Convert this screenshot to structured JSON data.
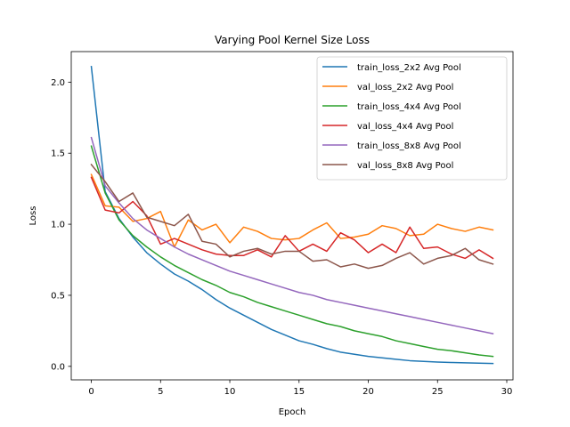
{
  "chart_data": {
    "type": "line",
    "title": "Varying Pool Kernel Size Loss",
    "xlabel": "Epoch",
    "ylabel": "Loss",
    "xlim": [
      -1.45,
      30.45
    ],
    "ylim": [
      -0.095,
      2.215
    ],
    "xticks": [
      0,
      5,
      10,
      15,
      20,
      25,
      30
    ],
    "yticks": [
      0.0,
      0.5,
      1.0,
      1.5,
      2.0
    ],
    "ytick_labels": [
      "0.0",
      "0.5",
      "1.0",
      "1.5",
      "2.0"
    ],
    "grid": false,
    "legend_position": "top-right",
    "x": [
      0,
      1,
      2,
      3,
      4,
      5,
      6,
      7,
      8,
      9,
      10,
      11,
      12,
      13,
      14,
      15,
      16,
      17,
      18,
      19,
      20,
      21,
      22,
      23,
      24,
      25,
      26,
      27,
      28,
      29
    ],
    "series": [
      {
        "name": "train_loss_2x2 Avg Pool",
        "color": "#1f77b4",
        "values": [
          2.11,
          1.23,
          1.04,
          0.91,
          0.8,
          0.72,
          0.65,
          0.6,
          0.54,
          0.47,
          0.41,
          0.36,
          0.31,
          0.26,
          0.22,
          0.18,
          0.155,
          0.125,
          0.1,
          0.085,
          0.07,
          0.06,
          0.05,
          0.04,
          0.035,
          0.03,
          0.027,
          0.025,
          0.022,
          0.02
        ]
      },
      {
        "name": "val_loss_2x2 Avg Pool",
        "color": "#ff7f0e",
        "values": [
          1.35,
          1.13,
          1.12,
          1.02,
          1.04,
          1.09,
          0.84,
          1.03,
          0.96,
          1.0,
          0.87,
          0.98,
          0.95,
          0.9,
          0.89,
          0.9,
          0.96,
          1.01,
          0.9,
          0.91,
          0.93,
          0.99,
          0.97,
          0.92,
          0.93,
          1.0,
          0.97,
          0.95,
          0.98,
          0.96
        ]
      },
      {
        "name": "train_loss_4x4 Avg Pool",
        "color": "#2ca02c",
        "values": [
          1.55,
          1.22,
          1.03,
          0.92,
          0.84,
          0.77,
          0.71,
          0.66,
          0.61,
          0.57,
          0.52,
          0.49,
          0.45,
          0.42,
          0.39,
          0.36,
          0.33,
          0.3,
          0.28,
          0.25,
          0.23,
          0.21,
          0.18,
          0.16,
          0.14,
          0.12,
          0.11,
          0.095,
          0.08,
          0.07
        ]
      },
      {
        "name": "val_loss_4x4 Avg Pool",
        "color": "#d62728",
        "values": [
          1.33,
          1.1,
          1.08,
          1.16,
          1.06,
          0.86,
          0.9,
          0.86,
          0.82,
          0.79,
          0.78,
          0.78,
          0.82,
          0.77,
          0.92,
          0.81,
          0.86,
          0.81,
          0.94,
          0.89,
          0.8,
          0.86,
          0.8,
          0.98,
          0.83,
          0.84,
          0.79,
          0.76,
          0.82,
          0.76
        ]
      },
      {
        "name": "train_loss_8x8 Avg Pool",
        "color": "#9467bd",
        "values": [
          1.61,
          1.27,
          1.15,
          1.04,
          0.96,
          0.9,
          0.84,
          0.79,
          0.75,
          0.71,
          0.67,
          0.64,
          0.61,
          0.58,
          0.55,
          0.52,
          0.5,
          0.47,
          0.45,
          0.43,
          0.41,
          0.39,
          0.37,
          0.35,
          0.33,
          0.31,
          0.29,
          0.27,
          0.25,
          0.23
        ]
      },
      {
        "name": "val_loss_8x8 Avg Pool",
        "color": "#8c564b",
        "values": [
          1.42,
          1.3,
          1.16,
          1.22,
          1.05,
          1.02,
          0.99,
          1.07,
          0.88,
          0.86,
          0.77,
          0.81,
          0.83,
          0.79,
          0.81,
          0.81,
          0.74,
          0.75,
          0.7,
          0.72,
          0.69,
          0.71,
          0.76,
          0.8,
          0.72,
          0.76,
          0.78,
          0.83,
          0.75,
          0.72
        ]
      }
    ]
  }
}
